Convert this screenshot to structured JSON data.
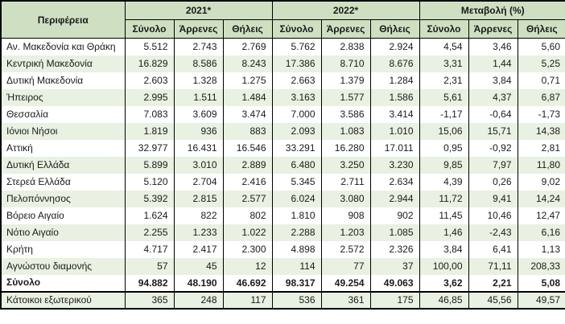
{
  "chart_data": {
    "type": "table",
    "region_header": "Περιφέρεια",
    "groups": [
      {
        "label": "2021*",
        "sub": [
          "Σύνολο",
          "Άρρενες",
          "Θήλεις"
        ]
      },
      {
        "label": "2022*",
        "sub": [
          "Σύνολο",
          "Άρρενες",
          "Θήλεις"
        ]
      },
      {
        "label": "Μεταβολή (%)",
        "sub": [
          "Σύνολο",
          "Άρρενες",
          "Θήλεις"
        ]
      }
    ],
    "rows": [
      {
        "region": "Αν. Μακεδονία και Θράκη",
        "values": [
          "5.512",
          "2.743",
          "2.769",
          "5.762",
          "2.838",
          "2.924",
          "4,54",
          "3,46",
          "5,60"
        ]
      },
      {
        "region": "Κεντρική Μακεδονία",
        "values": [
          "16.829",
          "8.586",
          "8.243",
          "17.386",
          "8.710",
          "8.676",
          "3,31",
          "1,44",
          "5,25"
        ]
      },
      {
        "region": "Δυτική Μακεδονία",
        "values": [
          "2.603",
          "1.328",
          "1.275",
          "2.663",
          "1.379",
          "1.284",
          "2,31",
          "3,84",
          "0,71"
        ]
      },
      {
        "region": "Ήπειρος",
        "values": [
          "2.995",
          "1.511",
          "1.484",
          "3.163",
          "1.577",
          "1.586",
          "5,61",
          "4,37",
          "6,87"
        ]
      },
      {
        "region": "Θεσσαλία",
        "values": [
          "7.083",
          "3.609",
          "3.474",
          "7.000",
          "3.586",
          "3.414",
          "-1,17",
          "-0,64",
          "-1,73"
        ]
      },
      {
        "region": "Ιόνιοι Νήσοι",
        "values": [
          "1.819",
          "936",
          "883",
          "2.093",
          "1.083",
          "1.010",
          "15,06",
          "15,71",
          "14,38"
        ]
      },
      {
        "region": "Αττική",
        "values": [
          "32.977",
          "16.431",
          "16.546",
          "33.291",
          "16.280",
          "17.011",
          "0,95",
          "-0,92",
          "2,81"
        ]
      },
      {
        "region": "Δυτική Ελλάδα",
        "values": [
          "5.899",
          "3.010",
          "2.889",
          "6.480",
          "3.250",
          "3.230",
          "9,85",
          "7,97",
          "11,80"
        ]
      },
      {
        "region": "Στερεά Ελλάδα",
        "values": [
          "5.120",
          "2.704",
          "2.416",
          "5.345",
          "2.711",
          "2.634",
          "4,39",
          "0,26",
          "9,02"
        ]
      },
      {
        "region": "Πελοπόννησος",
        "values": [
          "5.392",
          "2.815",
          "2.577",
          "6.024",
          "3.080",
          "2.944",
          "11,72",
          "9,41",
          "14,24"
        ]
      },
      {
        "region": "Βόρειο Αιγαίο",
        "values": [
          "1.624",
          "822",
          "802",
          "1.810",
          "908",
          "902",
          "11,45",
          "10,46",
          "12,47"
        ]
      },
      {
        "region": "Νότιο Αιγαίο",
        "values": [
          "2.255",
          "1.233",
          "1.022",
          "2.288",
          "1.203",
          "1.085",
          "1,46",
          "-2,43",
          "6,16"
        ]
      },
      {
        "region": "Κρήτη",
        "values": [
          "4.717",
          "2.417",
          "2.300",
          "4.898",
          "2.572",
          "2.326",
          "3,84",
          "6,41",
          "1,13"
        ]
      },
      {
        "region": "Αγνώστου διαμονής",
        "values": [
          "57",
          "45",
          "12",
          "114",
          "77",
          "37",
          "100,00",
          "71,11",
          "208,33"
        ]
      },
      {
        "region": "Σύνολο",
        "values": [
          "94.882",
          "48.190",
          "46.692",
          "98.317",
          "49.254",
          "49.063",
          "3,62",
          "2,21",
          "5,08"
        ],
        "is_total": true
      },
      {
        "region": "Κάτοικοι εξωτερικού",
        "values": [
          "365",
          "248",
          "117",
          "536",
          "361",
          "175",
          "46,85",
          "45,56",
          "49,57"
        ],
        "separated": true
      }
    ],
    "colors": {
      "header_bg": "#cfe0c2",
      "band_bg": "#e9f1e2",
      "border": "#000000",
      "text": "#1a1a1a"
    }
  }
}
